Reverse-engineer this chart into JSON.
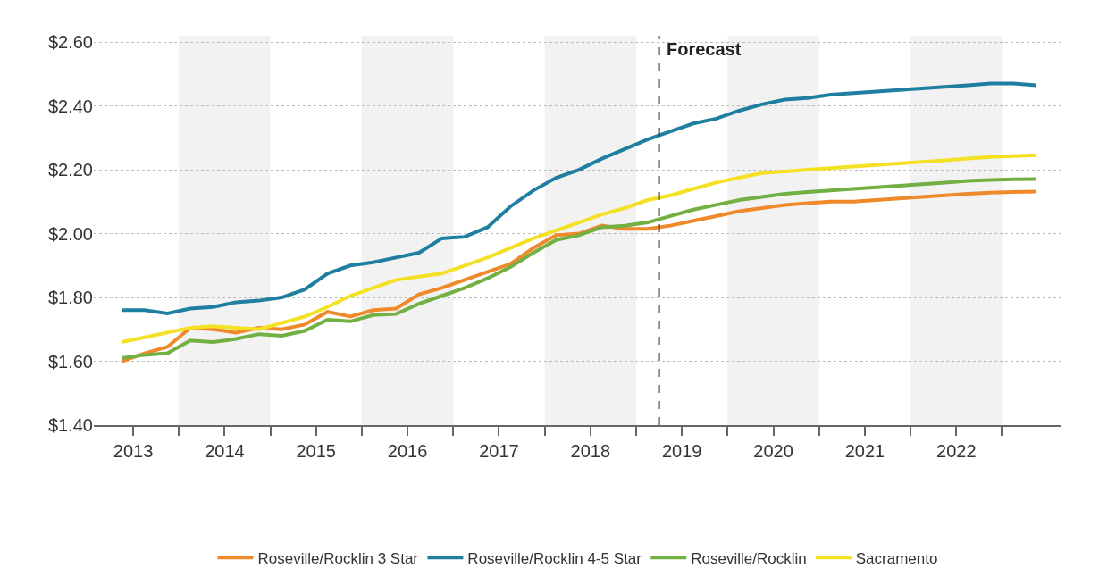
{
  "chart_data": {
    "type": "line",
    "x": [
      2013.375,
      2013.625,
      2013.875,
      2014.125,
      2014.375,
      2014.625,
      2014.875,
      2015.125,
      2015.375,
      2015.625,
      2015.875,
      2016.125,
      2016.375,
      2016.625,
      2016.875,
      2017.125,
      2017.375,
      2017.625,
      2017.875,
      2018.125,
      2018.375,
      2018.625,
      2018.875,
      2019.125,
      2019.375,
      2019.625,
      2019.875,
      2020.125,
      2020.375,
      2020.625,
      2020.875,
      2021.125,
      2021.375,
      2021.625,
      2021.875,
      2022.125,
      2022.375,
      2022.625,
      2022.875,
      2023.125,
      2023.375
    ],
    "series": [
      {
        "name": "Roseville/Rocklin 3 Star",
        "color": "#f0892a",
        "values": [
          1.6,
          1.625,
          1.645,
          1.705,
          1.7,
          1.69,
          1.705,
          1.7,
          1.715,
          1.755,
          1.74,
          1.76,
          1.765,
          1.81,
          1.83,
          1.855,
          1.88,
          1.905,
          1.955,
          1.995,
          2.0,
          2.025,
          2.015,
          2.015,
          2.025,
          2.04,
          2.055,
          2.07,
          2.08,
          2.09,
          2.095,
          2.1,
          2.1,
          2.105,
          2.11,
          2.115,
          2.12,
          2.125,
          2.128,
          2.13,
          2.132
        ]
      },
      {
        "name": "Roseville/Rocklin 4-5 Star",
        "color": "#1f7fa0",
        "values": [
          1.76,
          1.76,
          1.75,
          1.765,
          1.77,
          1.785,
          1.79,
          1.8,
          1.825,
          1.875,
          1.9,
          1.91,
          1.925,
          1.94,
          1.985,
          1.99,
          2.02,
          2.085,
          2.135,
          2.175,
          2.2,
          2.235,
          2.265,
          2.295,
          2.32,
          2.345,
          2.36,
          2.385,
          2.405,
          2.42,
          2.425,
          2.435,
          2.44,
          2.445,
          2.45,
          2.455,
          2.46,
          2.465,
          2.47,
          2.47,
          2.465
        ]
      },
      {
        "name": "Roseville/Rocklin",
        "color": "#72b043",
        "values": [
          1.61,
          1.62,
          1.625,
          1.665,
          1.66,
          1.67,
          1.685,
          1.68,
          1.695,
          1.73,
          1.725,
          1.745,
          1.748,
          1.78,
          1.805,
          1.83,
          1.86,
          1.895,
          1.94,
          1.98,
          1.995,
          2.02,
          2.025,
          2.035,
          2.055,
          2.075,
          2.09,
          2.105,
          2.115,
          2.125,
          2.13,
          2.135,
          2.14,
          2.145,
          2.15,
          2.155,
          2.16,
          2.165,
          2.168,
          2.17,
          2.171
        ]
      },
      {
        "name": "Sacramento",
        "color": "#f5e124",
        "values": [
          1.66,
          1.675,
          1.69,
          1.705,
          1.71,
          1.705,
          1.7,
          1.72,
          1.74,
          1.77,
          1.805,
          1.83,
          1.855,
          1.865,
          1.875,
          1.9,
          1.925,
          1.955,
          1.985,
          2.01,
          2.035,
          2.06,
          2.08,
          2.105,
          2.12,
          2.14,
          2.16,
          2.175,
          2.19,
          2.195,
          2.2,
          2.205,
          2.21,
          2.215,
          2.22,
          2.225,
          2.23,
          2.235,
          2.24,
          2.243,
          2.246
        ]
      }
    ],
    "xlim": [
      2013.07,
      2023.65
    ],
    "xticks": [
      {
        "value": 2013.5,
        "label": "2013"
      },
      {
        "value": 2014,
        "label": null
      },
      {
        "value": 2014.5,
        "label": "2014"
      },
      {
        "value": 2015,
        "label": null
      },
      {
        "value": 2015.5,
        "label": "2015"
      },
      {
        "value": 2016,
        "label": null
      },
      {
        "value": 2016.5,
        "label": "2016"
      },
      {
        "value": 2017,
        "label": null
      },
      {
        "value": 2017.5,
        "label": "2017"
      },
      {
        "value": 2018,
        "label": null
      },
      {
        "value": 2018.5,
        "label": "2018"
      },
      {
        "value": 2019,
        "label": null
      },
      {
        "value": 2019.5,
        "label": "2019"
      },
      {
        "value": 2020,
        "label": null
      },
      {
        "value": 2020.5,
        "label": "2020"
      },
      {
        "value": 2021,
        "label": null
      },
      {
        "value": 2021.5,
        "label": "2021"
      },
      {
        "value": 2022,
        "label": null
      },
      {
        "value": 2022.5,
        "label": "2022"
      },
      {
        "value": 2023,
        "label": null
      }
    ],
    "ylim": [
      1.4,
      2.62
    ],
    "yticks": [
      {
        "value": 1.4,
        "label": "$1.40"
      },
      {
        "value": 1.6,
        "label": "$1.60"
      },
      {
        "value": 1.8,
        "label": "$1.80"
      },
      {
        "value": 2.0,
        "label": "$2.00"
      },
      {
        "value": 2.2,
        "label": "$2.20"
      },
      {
        "value": 2.4,
        "label": "$2.40"
      },
      {
        "value": 2.6,
        "label": "$2.60"
      }
    ],
    "bands": [
      {
        "axis": "x",
        "from": 2014,
        "to": 2015,
        "color": "#f2f2f2"
      },
      {
        "axis": "x",
        "from": 2016,
        "to": 2017,
        "color": "#f2f2f2"
      },
      {
        "axis": "x",
        "from": 2018,
        "to": 2019,
        "color": "#f2f2f2"
      },
      {
        "axis": "x",
        "from": 2020,
        "to": 2021,
        "color": "#f2f2f2"
      },
      {
        "axis": "x",
        "from": 2022,
        "to": 2023,
        "color": "#f2f2f2"
      }
    ],
    "ref_lines": [
      {
        "axis": "x",
        "value": 2019.25,
        "label": "Forecast",
        "color": "#333333",
        "line_style": "dashed"
      }
    ],
    "grid": "y",
    "legend": "bottom",
    "marker": "none",
    "line_style": "solid"
  }
}
